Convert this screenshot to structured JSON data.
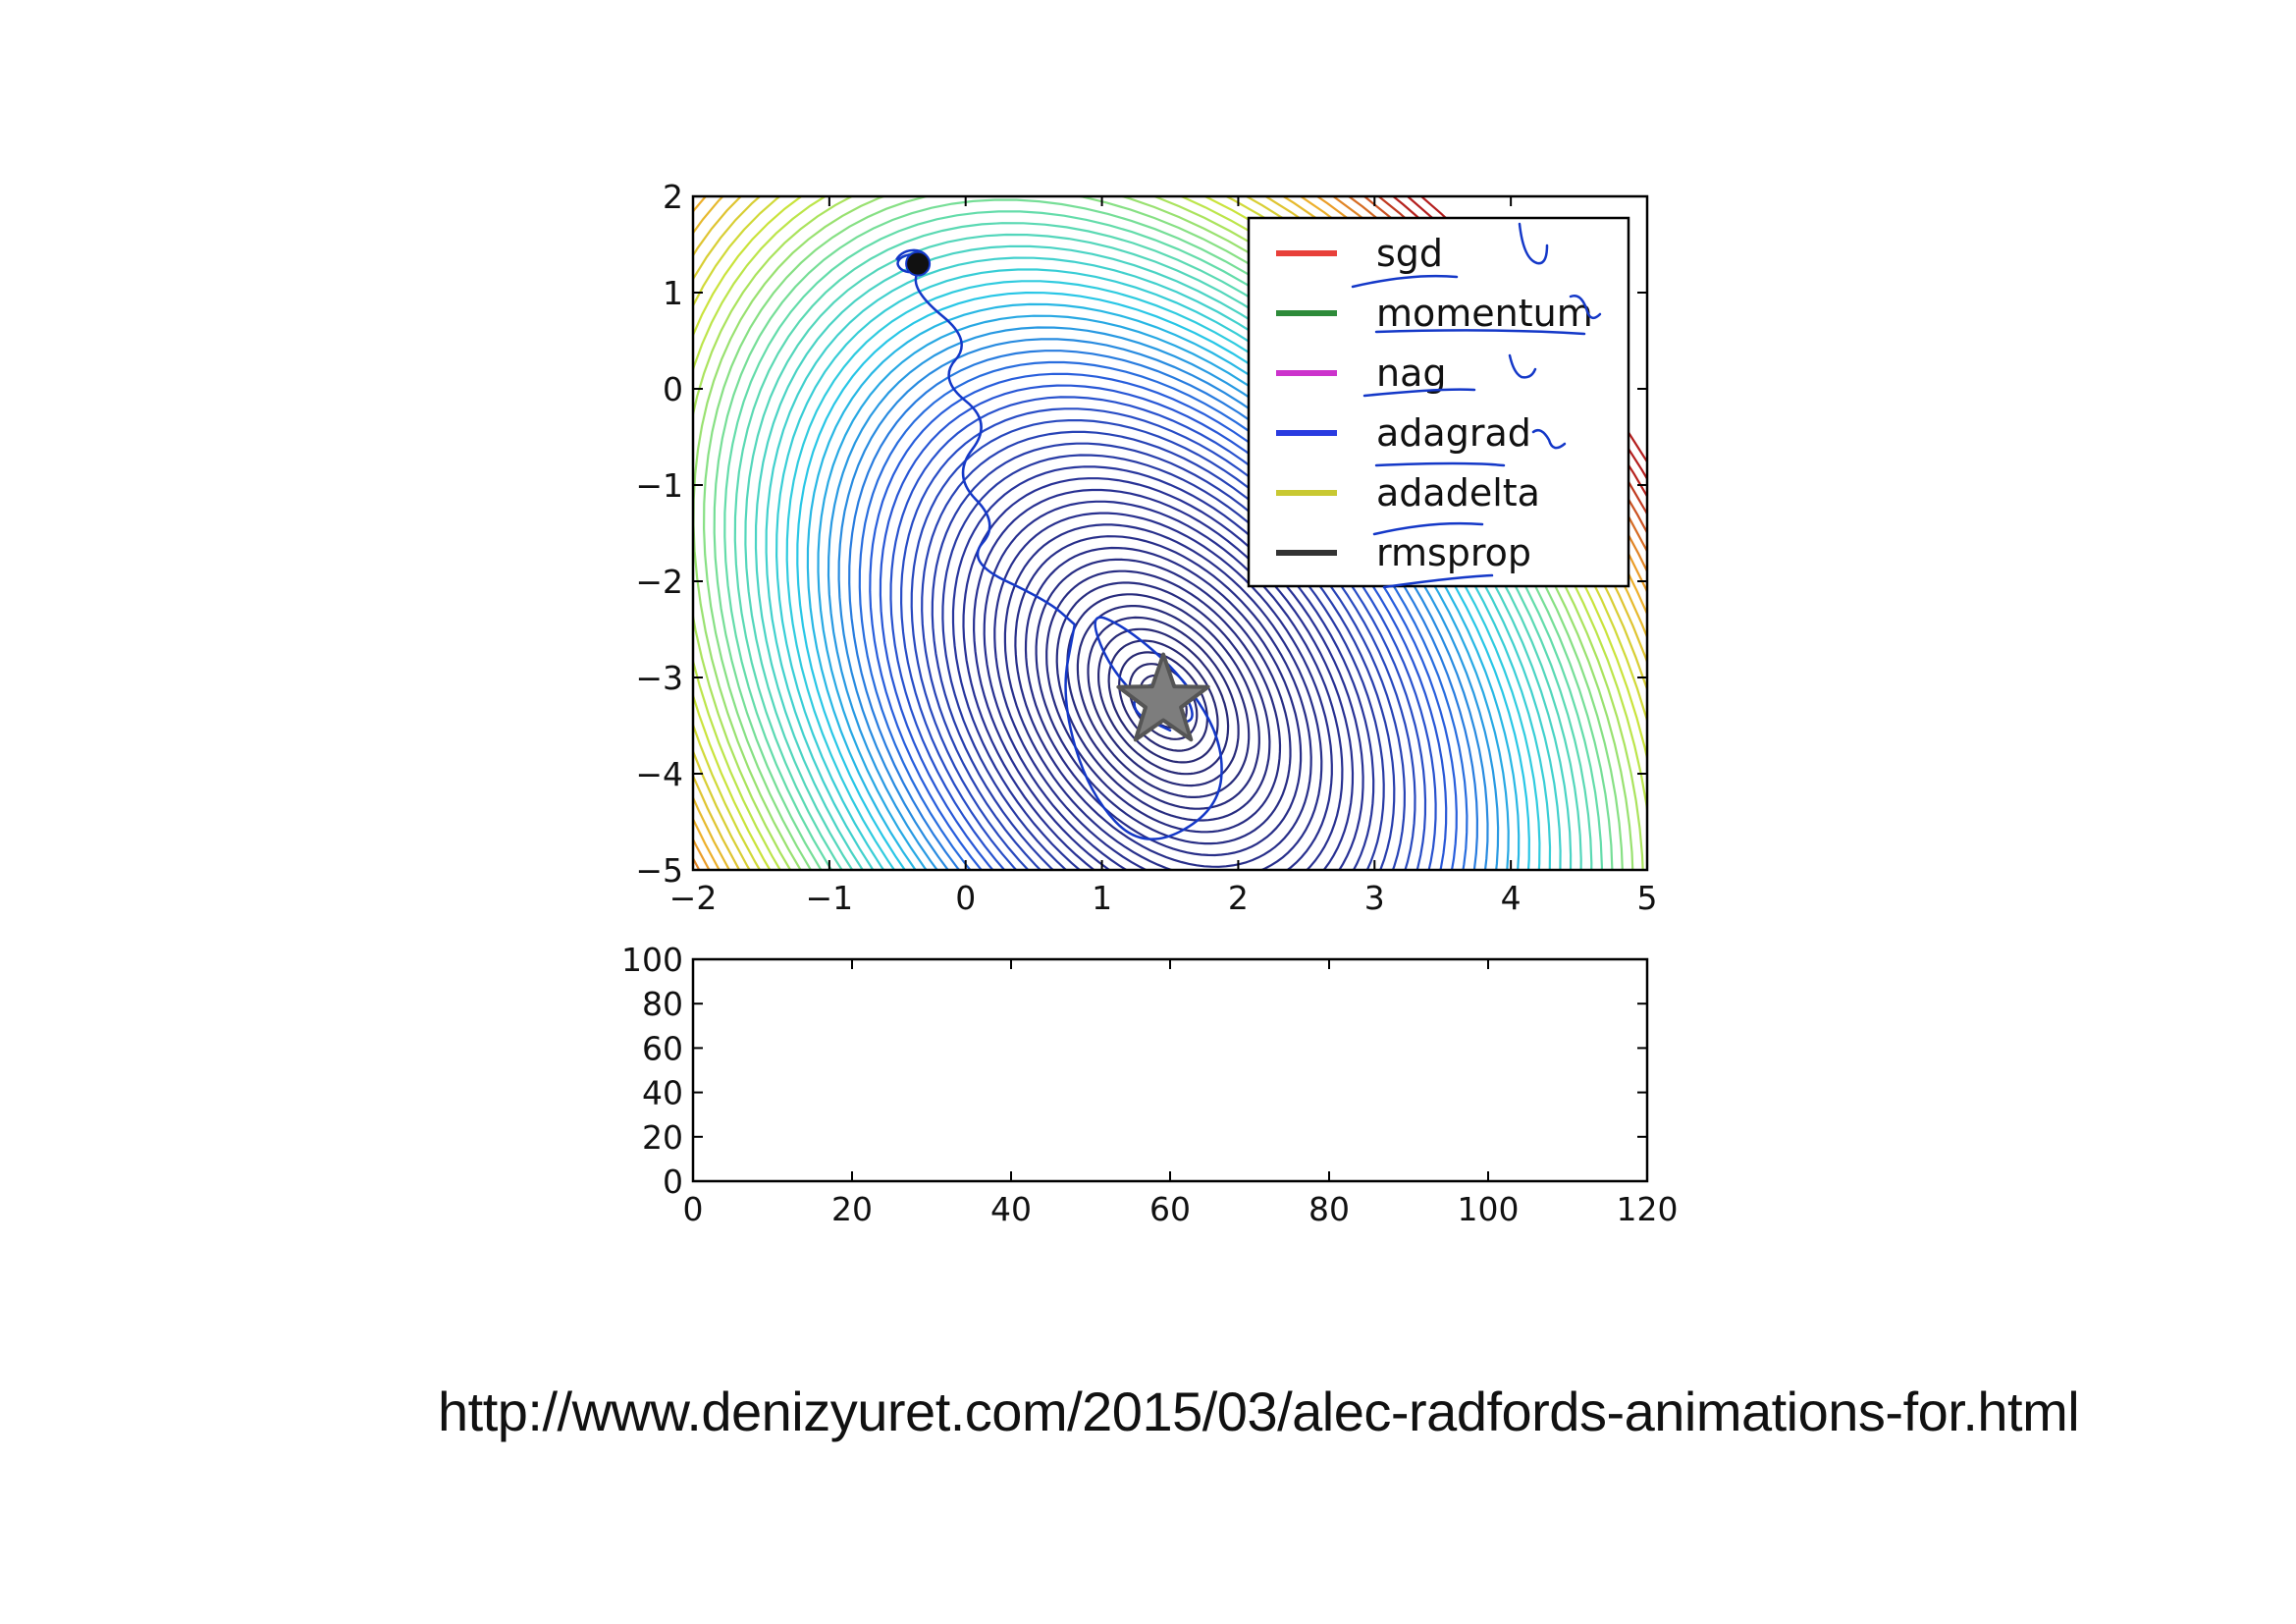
{
  "source_url": "http://www.denizyuret.com/2015/03/alec-radfords-animations-for.html",
  "colors": {
    "sgd": "#e8403a",
    "momentum": "#2e8b3a",
    "nag": "#cc33cc",
    "adagrad": "#2a3be0",
    "adadelta": "#c8c832",
    "rmsprop": "#333333",
    "annotation_ink": "#1438c8",
    "star_fill": "#7d7d7d"
  },
  "chart_data": [
    {
      "type": "contour",
      "xlim": [
        -2,
        5
      ],
      "ylim": [
        -5,
        2
      ],
      "xticks": [
        "−2",
        "−1",
        "0",
        "1",
        "2",
        "3",
        "4",
        "5"
      ],
      "yticks": [
        "2",
        "1",
        "0",
        "−1",
        "−2",
        "−3",
        "−4",
        "−5"
      ],
      "minimum": {
        "x": 1.45,
        "y": -3.25,
        "marker": "star"
      },
      "start_point": {
        "x": -0.35,
        "y": 1.3
      },
      "legend": {
        "placement": "top-right",
        "entries": [
          {
            "label": "sgd",
            "color": "#e8403a"
          },
          {
            "label": "momentum",
            "color": "#2e8b3a"
          },
          {
            "label": "nag",
            "color": "#cc33cc"
          },
          {
            "label": "adagrad",
            "color": "#2a3be0"
          },
          {
            "label": "adadelta",
            "color": "#c8c832"
          },
          {
            "label": "rmsprop",
            "color": "#333333"
          }
        ]
      },
      "annotation_path": [
        [
          -0.35,
          1.3
        ],
        [
          -0.38,
          1.0
        ],
        [
          0.05,
          0.5
        ],
        [
          -0.2,
          0.1
        ],
        [
          0.2,
          -0.35
        ],
        [
          -0.1,
          -0.9
        ],
        [
          0.25,
          -1.4
        ],
        [
          0.0,
          -1.8
        ],
        [
          0.6,
          -2.2
        ],
        [
          0.8,
          -2.45
        ]
      ],
      "annotation_loop": [
        [
          0.8,
          -2.45
        ],
        [
          0.7,
          -3.2
        ],
        [
          0.9,
          -4.2
        ],
        [
          1.3,
          -4.8
        ],
        [
          1.85,
          -4.4
        ],
        [
          1.9,
          -3.7
        ],
        [
          1.6,
          -3.0
        ],
        [
          1.2,
          -2.5
        ],
        [
          0.9,
          -2.3
        ],
        [
          1.05,
          -2.9
        ],
        [
          1.4,
          -3.4
        ],
        [
          1.7,
          -3.5
        ],
        [
          1.6,
          -3.1
        ],
        [
          1.3,
          -3.05
        ],
        [
          1.2,
          -3.35
        ],
        [
          1.5,
          -3.55
        ]
      ],
      "grid": false
    },
    {
      "type": "line",
      "xlim": [
        0,
        120
      ],
      "ylim": [
        0,
        100
      ],
      "xticks": [
        "0",
        "20",
        "40",
        "60",
        "80",
        "100",
        "120"
      ],
      "yticks": [
        "100",
        "80",
        "60",
        "40",
        "20",
        "0"
      ],
      "series": [],
      "grid": false
    }
  ]
}
